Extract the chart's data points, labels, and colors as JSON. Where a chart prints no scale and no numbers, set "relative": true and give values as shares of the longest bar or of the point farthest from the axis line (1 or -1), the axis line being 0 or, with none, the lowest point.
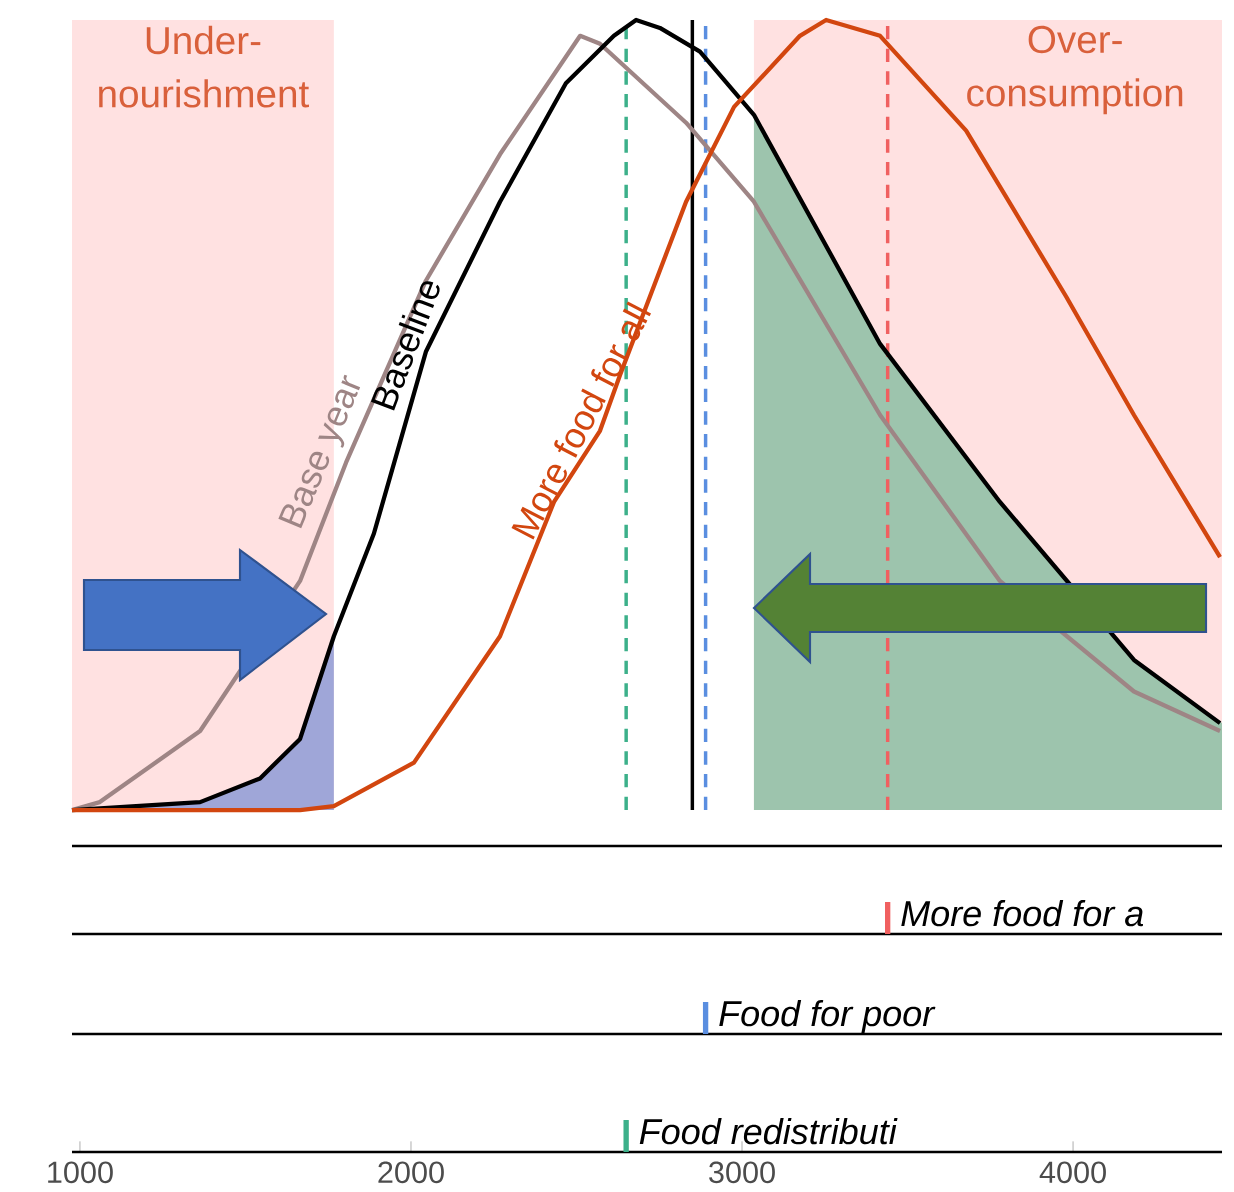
{
  "chart_data": {
    "type": "line",
    "relative": true,
    "xlim": [
      976,
      4450
    ],
    "xticks": [
      1000,
      2000,
      3000,
      4000
    ],
    "legend": "bottom",
    "series": [
      {
        "type": "area",
        "color": "#9fa6d8",
        "x": [
          976,
          1363,
          1544,
          1665,
          1767
        ],
        "values": [
          0,
          0.01,
          0.04,
          0.09,
          0.22
        ]
      },
      {
        "type": "area",
        "color": "#9dc4ad",
        "x": [
          3036,
          3417,
          3779,
          3979,
          4184,
          4450
        ],
        "values": [
          0.88,
          0.59,
          0.39,
          null,
          0.19,
          0.11
        ]
      },
      {
        "name": "Base year",
        "color": "#9e8585",
        "x": [
          976,
          1060,
          1363,
          1665,
          1804,
          2045,
          2269,
          2511,
          2571,
          2831,
          3036,
          3417,
          3779,
          4184,
          4444
        ],
        "values": [
          0,
          0.01,
          0.1,
          0.29,
          0.44,
          0.67,
          0.83,
          0.98,
          0.97,
          0.87,
          0.77,
          0.5,
          0.29,
          0.15,
          0.1
        ]
      },
      {
        "name": "Baseline",
        "color": "#000000",
        "x": [
          976,
          1363,
          1544,
          1665,
          1767,
          1888,
          2045,
          2269,
          2468,
          2613,
          2680,
          2752,
          2873,
          3036,
          3417,
          3779,
          3979,
          4184,
          4444
        ],
        "values": [
          0,
          0.01,
          0.04,
          0.09,
          0.22,
          0.35,
          0.58,
          0.77,
          0.92,
          0.98,
          1,
          0.99,
          0.96,
          0.88,
          0.59,
          0.39,
          null,
          0.19,
          0.11
        ]
      },
      {
        "name": "More food for all",
        "color": "#d2460f",
        "x": [
          976,
          1665,
          1767,
          2009,
          2269,
          2432,
          2571,
          2631,
          2831,
          2976,
          3175,
          3254,
          3417,
          3677,
          3979,
          4184,
          4444
        ],
        "values": [
          0,
          0,
          0.005,
          0.06,
          0.22,
          0.39,
          0.48,
          0.55,
          0.77,
          0.89,
          0.98,
          1,
          0.98,
          0.86,
          0.65,
          0.5,
          0.32
        ]
      }
    ],
    "bands": [
      {
        "axis": "x",
        "from": 976,
        "to": 1767,
        "label": "Under-nourishment",
        "color": "#ffe1e1"
      },
      {
        "axis": "x",
        "from": 3036,
        "to": 4450,
        "label": "Over-consumption",
        "color": "#ffe1e1"
      }
    ],
    "ref_lines": [
      {
        "axis": "x",
        "value": 3440,
        "color": "#f06060",
        "line_style": "dashed",
        "label": "More food for a"
      },
      {
        "axis": "x",
        "value": 2890,
        "color": "#5a8ee0",
        "line_style": "dashed",
        "label": "Food for poor"
      },
      {
        "axis": "x",
        "value": 2850,
        "color": "#000000"
      },
      {
        "axis": "x",
        "value": 2650,
        "color": "#3cb08a",
        "line_style": "dashed",
        "label": "Food redistributi"
      }
    ]
  }
}
